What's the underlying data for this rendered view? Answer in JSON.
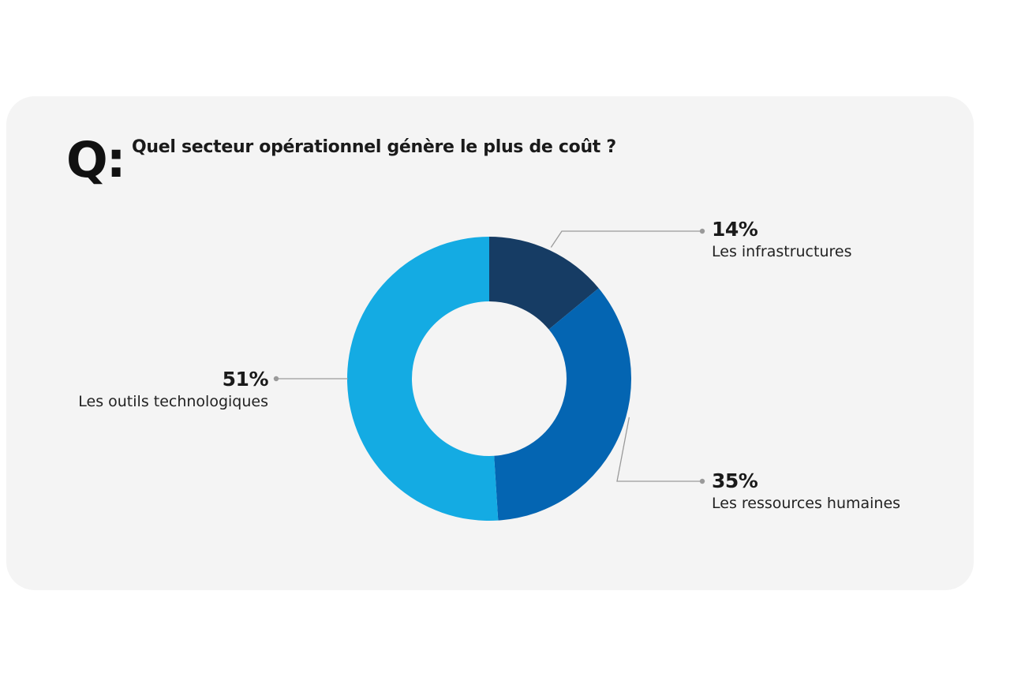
{
  "question": {
    "prefix": "Q:",
    "text": "Quel secteur opérationnel génère le plus de coût ?"
  },
  "chart_data": {
    "type": "pie",
    "variant": "donut",
    "title": "Quel secteur opérationnel génère le plus de coût ?",
    "start_angle_deg": 0,
    "direction": "clockwise",
    "slices": [
      {
        "label": "Les infrastructures",
        "value": 14,
        "display": "14%",
        "color": "#163c64"
      },
      {
        "label": "Les ressources humaines",
        "value": 35,
        "display": "35%",
        "color": "#0465b2"
      },
      {
        "label": "Les outils technologiques",
        "value": 51,
        "display": "51%",
        "color": "#14abe3"
      }
    ]
  },
  "colors": {
    "card_background": "#f4f4f4",
    "leader_line": "#9a9a9a"
  }
}
